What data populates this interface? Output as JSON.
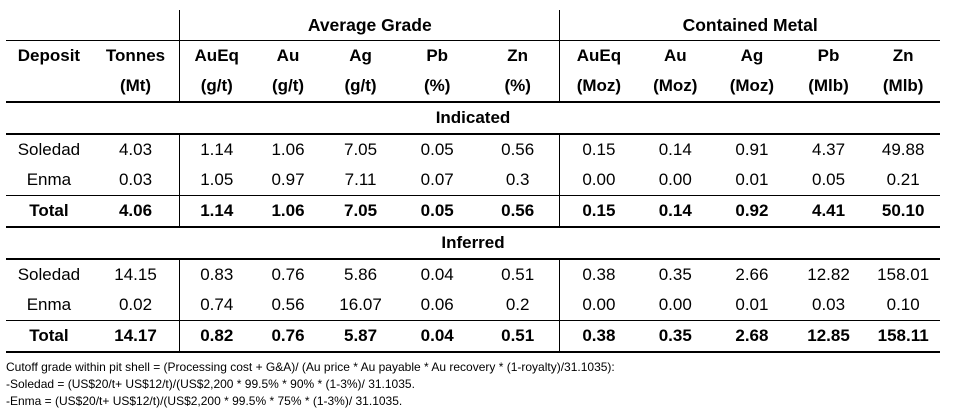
{
  "groups": {
    "average_grade": "Average Grade",
    "contained_metal": "Contained Metal"
  },
  "columns": {
    "deposit": "Deposit",
    "tonnes": "Tonnes",
    "tonnes_unit": "(Mt)",
    "grade": [
      {
        "name": "AuEq",
        "unit": "(g/t)"
      },
      {
        "name": "Au",
        "unit": "(g/t)"
      },
      {
        "name": "Ag",
        "unit": "(g/t)"
      },
      {
        "name": "Pb",
        "unit": "(%)"
      },
      {
        "name": "Zn",
        "unit": "(%)"
      }
    ],
    "metal": [
      {
        "name": "AuEq",
        "unit": "(Moz)"
      },
      {
        "name": "Au",
        "unit": "(Moz)"
      },
      {
        "name": "Ag",
        "unit": "(Moz)"
      },
      {
        "name": "Pb",
        "unit": "(Mlb)"
      },
      {
        "name": "Zn",
        "unit": "(Mlb)"
      }
    ]
  },
  "sections": [
    {
      "title": "Indicated",
      "rows": [
        {
          "deposit": "Soledad",
          "tonnes": "4.03",
          "grade": [
            "1.14",
            "1.06",
            "7.05",
            "0.05",
            "0.56"
          ],
          "metal": [
            "0.15",
            "0.14",
            "0.91",
            "4.37",
            "49.88"
          ]
        },
        {
          "deposit": "Enma",
          "tonnes": "0.03",
          "grade": [
            "1.05",
            "0.97",
            "7.11",
            "0.07",
            "0.3"
          ],
          "metal": [
            "0.00",
            "0.00",
            "0.01",
            "0.05",
            "0.21"
          ]
        }
      ],
      "total": {
        "deposit": "Total",
        "tonnes": "4.06",
        "grade": [
          "1.14",
          "1.06",
          "7.05",
          "0.05",
          "0.56"
        ],
        "metal": [
          "0.15",
          "0.14",
          "0.92",
          "4.41",
          "50.10"
        ]
      }
    },
    {
      "title": "Inferred",
      "rows": [
        {
          "deposit": "Soledad",
          "tonnes": "14.15",
          "grade": [
            "0.83",
            "0.76",
            "5.86",
            "0.04",
            "0.51"
          ],
          "metal": [
            "0.38",
            "0.35",
            "2.66",
            "12.82",
            "158.01"
          ]
        },
        {
          "deposit": "Enma",
          "tonnes": "0.02",
          "grade": [
            "0.74",
            "0.56",
            "16.07",
            "0.06",
            "0.2"
          ],
          "metal": [
            "0.00",
            "0.00",
            "0.01",
            "0.03",
            "0.10"
          ]
        }
      ],
      "total": {
        "deposit": "Total",
        "tonnes": "14.17",
        "grade": [
          "0.82",
          "0.76",
          "5.87",
          "0.04",
          "0.51"
        ],
        "metal": [
          "0.38",
          "0.35",
          "2.68",
          "12.85",
          "158.11"
        ]
      }
    }
  ],
  "footnotes": [
    "Cutoff grade within pit shell = (Processing cost + G&A)/ (Au price * Au payable * Au recovery * (1-royalty)/31.1035):",
    "-Soledad = (US$20/t+ US$12/t)/(US$2,200 * 99.5% * 90% * (1-3%)/ 31.1035.",
    "-Enma = (US$20/t+ US$12/t)/(US$2,200 * 99.5% * 75% * (1-3%)/ 31.1035."
  ]
}
